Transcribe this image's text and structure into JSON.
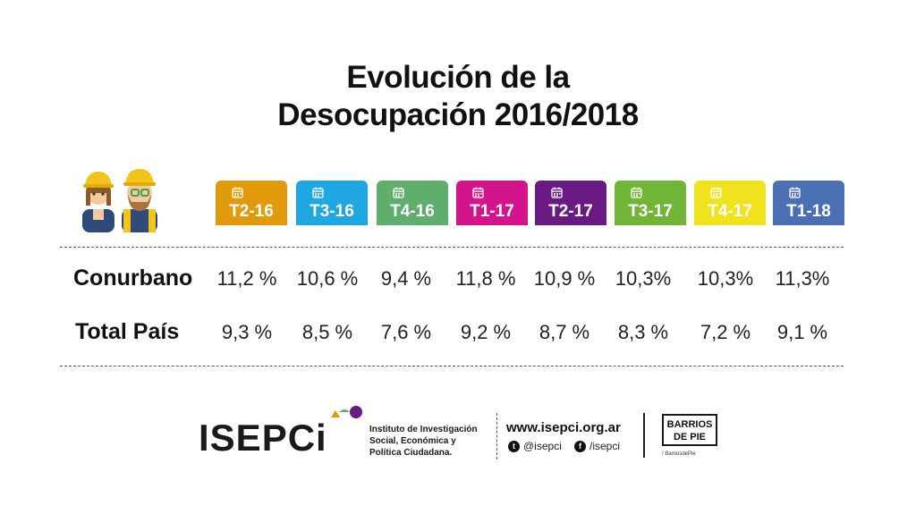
{
  "title": {
    "line1": "Evolución de la",
    "line2": "Desocupación 2016/2018"
  },
  "icons": {
    "workers": "construction-workers-icon",
    "period": "calendar-icon"
  },
  "chart_data": {
    "type": "table",
    "title": "Evolución de la Desocupación 2016/2018",
    "columns": [
      {
        "label": "T2-16",
        "color": "#E19A0A"
      },
      {
        "label": "T3-16",
        "color": "#1EA7E1"
      },
      {
        "label": "T4-16",
        "color": "#5FAE6E"
      },
      {
        "label": "T1-17",
        "color": "#D4148B"
      },
      {
        "label": "T2-17",
        "color": "#6A1A83"
      },
      {
        "label": "T3-17",
        "color": "#71B537"
      },
      {
        "label": "T4-17",
        "color": "#F1E21E"
      },
      {
        "label": "T1-18",
        "color": "#4A6FB3"
      }
    ],
    "rows": [
      {
        "label": "Conurbano",
        "values": [
          11.2,
          10.6,
          9.4,
          11.8,
          10.9,
          10.3,
          10.3,
          11.3
        ],
        "display": [
          "11,2 %",
          "10,6 %",
          "9,4 %",
          "11,8 %",
          "10,9 %",
          "10,3%",
          "10,3%",
          "11,3%"
        ]
      },
      {
        "label": "Total País",
        "values": [
          9.3,
          8.5,
          7.6,
          9.2,
          8.7,
          8.3,
          7.2,
          9.1
        ],
        "display": [
          "9,3 %",
          "8,5 %",
          "7,6 %",
          "9,2 %",
          "8,7 %",
          "8,3 %",
          "7,2 %",
          "9,1 %"
        ]
      }
    ]
  },
  "footer": {
    "logo": "ISEPCi",
    "dot_colors": [
      "#E19A0A",
      "#5FAE6E",
      "#6A1A83"
    ],
    "institute": [
      "Instituto de Investigación",
      "Social, Económica y",
      "Política Ciudadana."
    ],
    "website": "www.isepci.org.ar",
    "twitter_icon": "twitter-icon",
    "twitter": "@isepci",
    "facebook_icon": "facebook-icon",
    "facebook": "/isepci",
    "partner_line1": "BARRIOS",
    "partner_line2": "DE PIE",
    "partner_handle": "/ BarriosdePie"
  }
}
